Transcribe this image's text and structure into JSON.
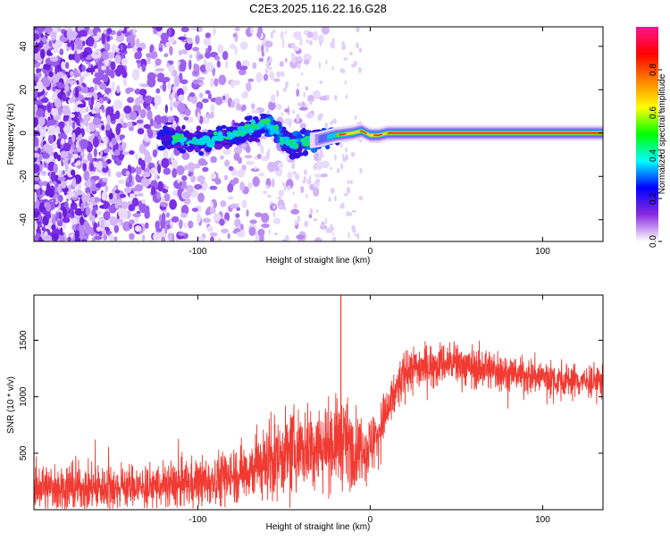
{
  "title": "C2E3.2025.116.22.16.G28",
  "chart_data": [
    {
      "type": "heatmap",
      "xlabel": "Height of straight line (km)",
      "ylabel": "Frequency (Hz)",
      "xlim": [
        -195,
        135
      ],
      "ylim": [
        -50,
        49
      ],
      "xticks": [
        -100,
        0,
        100
      ],
      "xtick_labels": [
        "-100",
        "0",
        "100"
      ],
      "yticks": [
        -40,
        -20,
        0,
        20,
        40
      ],
      "ytick_labels": [
        "-40",
        "-20",
        "0",
        "20",
        "40"
      ],
      "grid": false,
      "description_ridge": [
        [
          -120,
          -2
        ],
        [
          -110,
          -3
        ],
        [
          -100,
          -4
        ],
        [
          -90,
          -3
        ],
        [
          -80,
          -1
        ],
        [
          -70,
          2
        ],
        [
          -60,
          4
        ],
        [
          -55,
          1
        ],
        [
          -50,
          -3
        ],
        [
          -45,
          -5
        ],
        [
          -40,
          -4
        ],
        [
          -30,
          -3
        ],
        [
          -20,
          -1
        ],
        [
          -10,
          0
        ],
        [
          -5,
          1
        ],
        [
          0,
          -1
        ],
        [
          5,
          -1
        ],
        [
          10,
          0
        ],
        [
          135,
          0
        ]
      ],
      "colorbar": {
        "label": "Normalized spectral amplitude",
        "range": [
          0,
          1
        ],
        "ticks": [
          0.0,
          0.2,
          0.4,
          0.6,
          0.8
        ],
        "tick_labels": [
          "0.0",
          "0.2",
          "0.4",
          "0.6",
          "0.8"
        ],
        "colors": [
          "#ffffff",
          "#8a2be2",
          "#0000ff",
          "#00ffff",
          "#00ff00",
          "#ffff00",
          "#ff8000",
          "#ff0000",
          "#ff1493"
        ]
      }
    },
    {
      "type": "line",
      "xlabel": "Height of straight line (km)",
      "ylabel": "SNR (10 * v/v)",
      "xlim": [
        -195,
        135
      ],
      "ylim": [
        0,
        1900
      ],
      "xticks": [
        -100,
        0,
        100
      ],
      "xtick_labels": [
        "-100",
        "0",
        "100"
      ],
      "yticks": [
        500,
        1000,
        1500
      ],
      "ytick_labels": [
        "500",
        "1000",
        "1500"
      ],
      "grid": false,
      "series_color": "#f03a32",
      "x": [
        -195,
        -180,
        -160,
        -140,
        -120,
        -100,
        -90,
        -80,
        -70,
        -60,
        -55,
        -50,
        -45,
        -40,
        -35,
        -30,
        -25,
        -20,
        -15,
        -10,
        -5,
        0,
        5,
        10,
        15,
        20,
        25,
        30,
        40,
        50,
        60,
        70,
        80,
        90,
        100,
        110,
        120,
        130,
        135
      ],
      "y": [
        200,
        200,
        195,
        200,
        210,
        240,
        270,
        310,
        360,
        420,
        450,
        480,
        520,
        540,
        560,
        570,
        580,
        600,
        600,
        560,
        520,
        560,
        700,
        870,
        1050,
        1200,
        1250,
        1270,
        1300,
        1290,
        1260,
        1240,
        1210,
        1190,
        1180,
        1150,
        1140,
        1140,
        1130
      ],
      "noise": [
        180,
        180,
        180,
        180,
        180,
        200,
        210,
        230,
        250,
        280,
        300,
        320,
        320,
        320,
        330,
        330,
        340,
        340,
        360,
        300,
        260,
        250,
        220,
        200,
        200,
        190,
        180,
        180,
        170,
        170,
        160,
        160,
        150,
        150,
        150,
        140,
        140,
        140,
        140
      ],
      "spike": {
        "x": -17,
        "y": 1900
      }
    }
  ]
}
